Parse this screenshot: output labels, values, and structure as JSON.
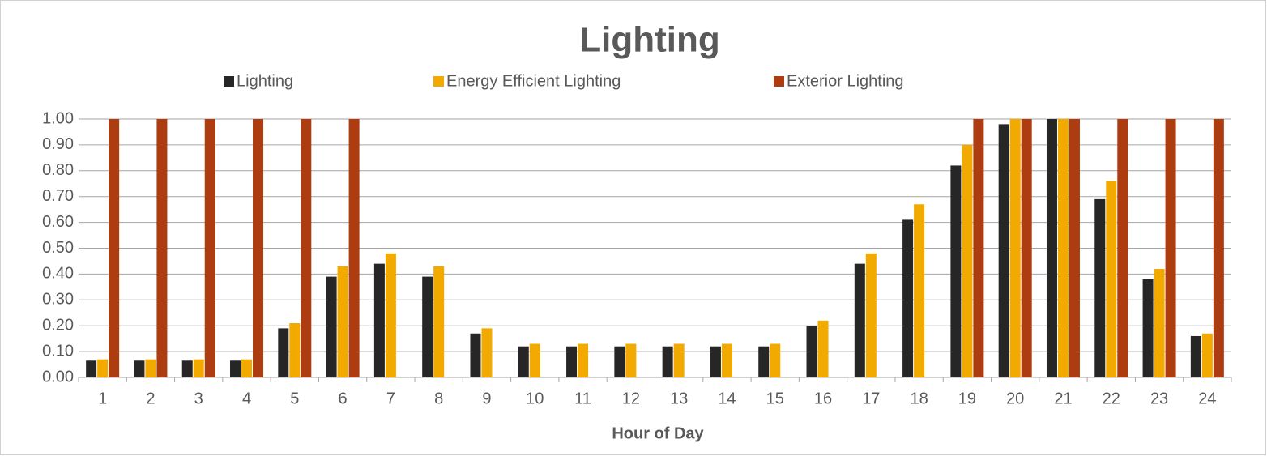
{
  "chart_data": {
    "type": "bar",
    "title": "Lighting",
    "x_label": "Hour of Day",
    "categories": [
      "1",
      "2",
      "3",
      "4",
      "5",
      "6",
      "7",
      "8",
      "9",
      "10",
      "11",
      "12",
      "13",
      "14",
      "15",
      "16",
      "17",
      "18",
      "19",
      "20",
      "21",
      "22",
      "23",
      "24"
    ],
    "series": [
      {
        "name": "Lighting",
        "color": "#262626",
        "values": [
          0.065,
          0.065,
          0.065,
          0.065,
          0.19,
          0.39,
          0.44,
          0.39,
          0.17,
          0.12,
          0.12,
          0.12,
          0.12,
          0.12,
          0.12,
          0.2,
          0.44,
          0.61,
          0.82,
          0.98,
          1.0,
          0.69,
          0.38,
          0.16
        ]
      },
      {
        "name": "Energy Efficient Lighting",
        "color": "#f2a900",
        "values": [
          0.07,
          0.07,
          0.07,
          0.07,
          0.21,
          0.43,
          0.48,
          0.43,
          0.19,
          0.13,
          0.13,
          0.13,
          0.13,
          0.13,
          0.13,
          0.22,
          0.48,
          0.67,
          0.9,
          1.0,
          1.0,
          0.76,
          0.42,
          0.17
        ]
      },
      {
        "name": "Exterior Lighting",
        "color": "#ad3c10",
        "values": [
          1,
          1,
          1,
          1,
          1,
          1,
          0,
          0,
          0,
          0,
          0,
          0,
          0,
          0,
          0,
          0,
          0,
          0,
          1,
          1,
          1,
          1,
          1,
          1
        ]
      }
    ],
    "ylim": [
      0,
      1
    ],
    "yticks": [
      {
        "value": 0,
        "label": "0.00"
      },
      {
        "value": 0.1,
        "label": "0.10"
      },
      {
        "value": 0.2,
        "label": "0.20"
      },
      {
        "value": 0.3,
        "label": "0.30"
      },
      {
        "value": 0.4,
        "label": "0.40"
      },
      {
        "value": 0.5,
        "label": "0.50"
      },
      {
        "value": 0.6,
        "label": "0.60"
      },
      {
        "value": 0.7,
        "label": "0.70"
      },
      {
        "value": 0.8,
        "label": "0.80"
      },
      {
        "value": 0.9,
        "label": "0.90"
      },
      {
        "value": 1,
        "label": "1.00"
      }
    ],
    "grid": true,
    "legend": "top"
  }
}
